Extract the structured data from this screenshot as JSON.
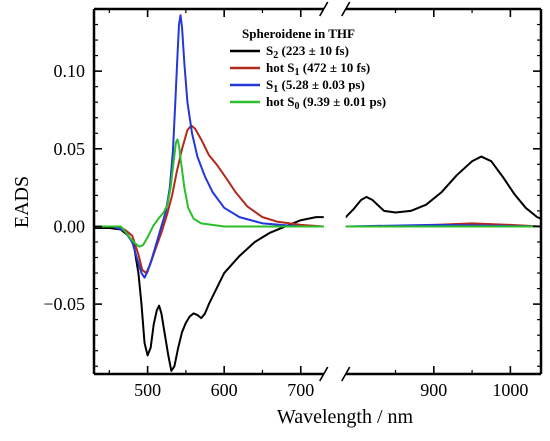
{
  "chart_data": {
    "type": "line",
    "xlabel": "Wavelength / nm",
    "ylabel": "EADS",
    "x_break": [
      730,
      785
    ],
    "xlim": [
      430,
      1040
    ],
    "ylim": [
      -0.095,
      0.14
    ],
    "x_ticks": [
      500,
      600,
      700,
      900,
      1000
    ],
    "x_tick_labels": [
      "500",
      "600",
      "700",
      "900",
      "1000"
    ],
    "y_ticks": [
      -0.05,
      0.0,
      0.05,
      0.1
    ],
    "y_tick_labels": [
      "−0.05",
      "0.00",
      "0.05",
      "0.10"
    ],
    "grid": false,
    "legend": {
      "title": "Spheroidene in THF",
      "placement": "top-right",
      "entries": [
        {
          "main": "S",
          "sub": "2",
          "rest": " (223 ± 10 fs)"
        },
        {
          "main": "hot S",
          "sub": "1",
          "rest": " (472 ± 10 fs)"
        },
        {
          "main": "S",
          "sub": "1",
          "rest": " (5.28 ± 0.03 ps)"
        },
        {
          "main": "hot S",
          "sub": "0",
          "rest": " (9.39 ± 0.01 ps)"
        }
      ]
    },
    "series": [
      {
        "name": "S2 (223 ± 10 fs)",
        "color": "#000000",
        "points": [
          [
            430,
            -0.001
          ],
          [
            450,
            -0.001
          ],
          [
            465,
            -0.002
          ],
          [
            475,
            -0.006
          ],
          [
            482,
            -0.012
          ],
          [
            488,
            -0.03
          ],
          [
            492,
            -0.05
          ],
          [
            496,
            -0.075
          ],
          [
            500,
            -0.083
          ],
          [
            504,
            -0.078
          ],
          [
            508,
            -0.063
          ],
          [
            512,
            -0.054
          ],
          [
            515,
            -0.051
          ],
          [
            518,
            -0.056
          ],
          [
            522,
            -0.068
          ],
          [
            527,
            -0.083
          ],
          [
            531,
            -0.093
          ],
          [
            535,
            -0.09
          ],
          [
            540,
            -0.078
          ],
          [
            545,
            -0.068
          ],
          [
            550,
            -0.062
          ],
          [
            555,
            -0.058
          ],
          [
            560,
            -0.056
          ],
          [
            565,
            -0.057
          ],
          [
            570,
            -0.059
          ],
          [
            575,
            -0.056
          ],
          [
            580,
            -0.05
          ],
          [
            590,
            -0.04
          ],
          [
            600,
            -0.03
          ],
          [
            620,
            -0.019
          ],
          [
            640,
            -0.01
          ],
          [
            660,
            -0.004
          ],
          [
            680,
            0.0
          ],
          [
            700,
            0.004
          ],
          [
            720,
            0.006
          ],
          [
            730,
            0.006
          ],
          [
            785,
            0.006
          ],
          [
            795,
            0.011
          ],
          [
            805,
            0.017
          ],
          [
            812,
            0.019
          ],
          [
            820,
            0.017
          ],
          [
            835,
            0.01
          ],
          [
            850,
            0.009
          ],
          [
            870,
            0.01
          ],
          [
            890,
            0.014
          ],
          [
            910,
            0.022
          ],
          [
            930,
            0.033
          ],
          [
            950,
            0.042
          ],
          [
            962,
            0.045
          ],
          [
            975,
            0.042
          ],
          [
            990,
            0.032
          ],
          [
            1005,
            0.021
          ],
          [
            1020,
            0.012
          ],
          [
            1035,
            0.006
          ],
          [
            1040,
            0.005
          ]
        ]
      },
      {
        "name": "hot S1 (472 ± 10 fs)",
        "color": "#b22a1e",
        "points": [
          [
            430,
            0.0
          ],
          [
            455,
            0.0
          ],
          [
            470,
            -0.002
          ],
          [
            480,
            -0.006
          ],
          [
            488,
            -0.018
          ],
          [
            493,
            -0.028
          ],
          [
            498,
            -0.03
          ],
          [
            503,
            -0.025
          ],
          [
            510,
            -0.015
          ],
          [
            518,
            -0.004
          ],
          [
            525,
            0.007
          ],
          [
            532,
            0.02
          ],
          [
            538,
            0.035
          ],
          [
            545,
            0.05
          ],
          [
            552,
            0.062
          ],
          [
            557,
            0.065
          ],
          [
            562,
            0.063
          ],
          [
            570,
            0.056
          ],
          [
            580,
            0.046
          ],
          [
            590,
            0.04
          ],
          [
            600,
            0.033
          ],
          [
            615,
            0.022
          ],
          [
            630,
            0.013
          ],
          [
            650,
            0.006
          ],
          [
            670,
            0.003
          ],
          [
            700,
            0.001
          ],
          [
            730,
            0.0
          ],
          [
            785,
            0.0
          ],
          [
            850,
            0.0
          ],
          [
            950,
            0.002
          ],
          [
            1000,
            0.001
          ],
          [
            1040,
            0.0
          ]
        ]
      },
      {
        "name": "S1 (5.28 ± 0.03 ps)",
        "color": "#2438d8",
        "points": [
          [
            430,
            0.0
          ],
          [
            455,
            0.0
          ],
          [
            470,
            -0.003
          ],
          [
            480,
            -0.01
          ],
          [
            487,
            -0.022
          ],
          [
            492,
            -0.03
          ],
          [
            496,
            -0.033
          ],
          [
            500,
            -0.029
          ],
          [
            506,
            -0.02
          ],
          [
            512,
            -0.01
          ],
          [
            518,
            0.0
          ],
          [
            524,
            0.01
          ],
          [
            529,
            0.025
          ],
          [
            533,
            0.048
          ],
          [
            536,
            0.078
          ],
          [
            539,
            0.11
          ],
          [
            541,
            0.13
          ],
          [
            543,
            0.136
          ],
          [
            545,
            0.128
          ],
          [
            548,
            0.105
          ],
          [
            552,
            0.08
          ],
          [
            558,
            0.06
          ],
          [
            565,
            0.045
          ],
          [
            575,
            0.032
          ],
          [
            585,
            0.022
          ],
          [
            600,
            0.012
          ],
          [
            620,
            0.006
          ],
          [
            650,
            0.002
          ],
          [
            700,
            0.0
          ],
          [
            730,
            0.0
          ],
          [
            785,
            0.0
          ],
          [
            900,
            0.001
          ],
          [
            1040,
            0.0
          ]
        ]
      },
      {
        "name": "hot S0 (9.39 ± 0.01 ps)",
        "color": "#2bbf2b",
        "points": [
          [
            430,
            0.0
          ],
          [
            455,
            0.0
          ],
          [
            465,
            0.0
          ],
          [
            472,
            -0.004
          ],
          [
            478,
            -0.008
          ],
          [
            484,
            -0.011
          ],
          [
            489,
            -0.013
          ],
          [
            494,
            -0.012
          ],
          [
            500,
            -0.007
          ],
          [
            507,
            0.0
          ],
          [
            514,
            0.005
          ],
          [
            521,
            0.009
          ],
          [
            526,
            0.014
          ],
          [
            530,
            0.025
          ],
          [
            534,
            0.042
          ],
          [
            537,
            0.054
          ],
          [
            539,
            0.056
          ],
          [
            541,
            0.052
          ],
          [
            544,
            0.04
          ],
          [
            548,
            0.025
          ],
          [
            553,
            0.012
          ],
          [
            560,
            0.005
          ],
          [
            570,
            0.002
          ],
          [
            600,
            0.0
          ],
          [
            730,
            0.0
          ],
          [
            785,
            0.0
          ],
          [
            1040,
            0.0
          ]
        ]
      }
    ]
  }
}
